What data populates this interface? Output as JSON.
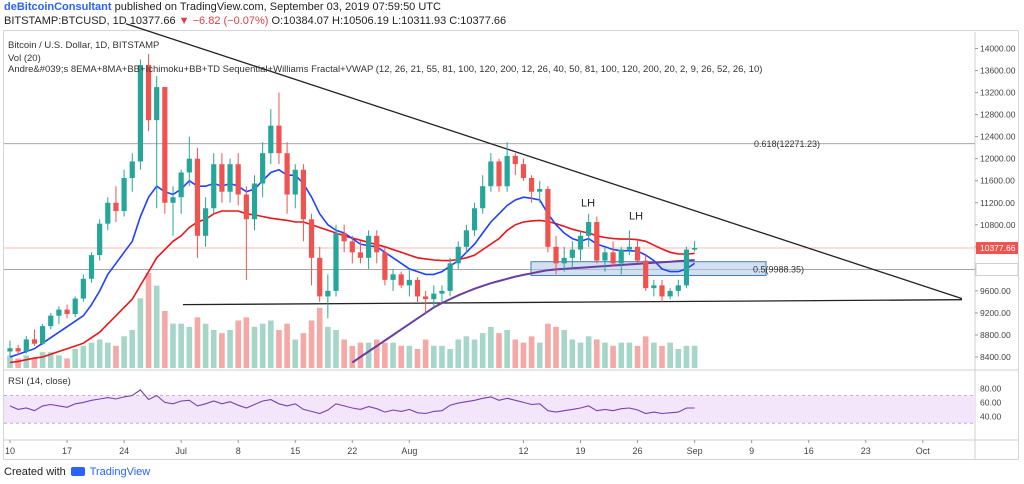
{
  "header": {
    "user": "deBitcoinConsultant",
    "published": "published on TradingView.com, September 03, 2019 07:59:50 UTC",
    "symbol_line": "BITSTAMP:BTCUSD, 1D 10377.66",
    "change": "▼ −6.82 (−0.07%)",
    "ohlc": "O:10384.07 H:10506.19 L:10311.93 C:10377.66"
  },
  "legend": {
    "title": "Bitcoin / U.S. Dollar, 1D, BITSTAMP",
    "vol": "Vol (20)",
    "indicators": "Andre&#039;s 8EMA+8MA+BB+Ichimoku+BB+TD Sequential+Williams Fractal+VWAP (12, 26, 21, 55, 81, 100, 120, 200, 12, 26, 40, 50, 81, 100, 120, 200, 20, 2, 9, 26, 52, 26, 10)",
    "rsi": "RSI (14, close)"
  },
  "footer": {
    "created": "Created with",
    "brand": "TradingView"
  },
  "colors": {
    "up": "#26a69a",
    "down": "#ef5350",
    "vol_up": "#a5d6c7",
    "vol_down": "#f4a9a6",
    "ema_blue": "#1e40ff",
    "ma_red": "#e8151b",
    "vwap": "#6a3ea1",
    "rsi_line": "#7b3fb0",
    "rsi_band": "#f3e6fb"
  },
  "chart_data": {
    "type": "candlestick",
    "title": "Bitcoin / U.S. Dollar, 1D, BITSTAMP",
    "ylim": [
      8200,
      14300
    ],
    "price_ticks": [
      14000,
      13600,
      13200,
      12800,
      12400,
      12000,
      11600,
      11200,
      10800,
      10400,
      10000,
      9600,
      9200,
      8800,
      8400
    ],
    "price_tick_labels": [
      "14000.00",
      "13600.00",
      "13200.00",
      "12800.00",
      "12400.00",
      "12000.00",
      "11600.00",
      "11200.00",
      "10800.00",
      "10400.00",
      "10000.00",
      "9600.00",
      "9200.00",
      "8800.00",
      "8400.00"
    ],
    "x_ticks": [
      "10",
      "17",
      "24",
      "Jul",
      "8",
      "15",
      "22",
      "Aug",
      "12",
      "19",
      "26",
      "Sep",
      "9",
      "16",
      "23",
      "Oct"
    ],
    "x_tick_days": [
      0,
      7,
      14,
      21,
      28,
      35,
      42,
      49,
      63,
      70,
      77,
      84,
      91,
      98,
      105,
      112
    ],
    "candles": [
      [
        8500,
        8700,
        8420,
        8560
      ],
      [
        8560,
        8620,
        8430,
        8500
      ],
      [
        8500,
        8780,
        8460,
        8720
      ],
      [
        8720,
        8900,
        8600,
        8640
      ],
      [
        8640,
        9000,
        8620,
        8960
      ],
      [
        8960,
        9200,
        8900,
        9150
      ],
      [
        9150,
        9320,
        9000,
        9260
      ],
      [
        9260,
        9350,
        9100,
        9180
      ],
      [
        9180,
        9500,
        9120,
        9460
      ],
      [
        9460,
        9900,
        9400,
        9820
      ],
      [
        9820,
        10300,
        9750,
        10250
      ],
      [
        10250,
        10900,
        10150,
        10820
      ],
      [
        10820,
        11300,
        10700,
        11200
      ],
      [
        11200,
        11500,
        10850,
        11050
      ],
      [
        11050,
        11800,
        10950,
        11650
      ],
      [
        11650,
        12100,
        11400,
        11950
      ],
      [
        11950,
        13800,
        11800,
        13700
      ],
      [
        13700,
        13900,
        12500,
        12700
      ],
      [
        12700,
        13500,
        11100,
        13300
      ],
      [
        13300,
        13300,
        11000,
        11200
      ],
      [
        11200,
        11500,
        10600,
        11300
      ],
      [
        11300,
        11800,
        11000,
        11750
      ],
      [
        11750,
        12400,
        11500,
        12000
      ],
      [
        12000,
        12200,
        10200,
        10600
      ],
      [
        10600,
        11300,
        10400,
        11100
      ],
      [
        11100,
        12100,
        11000,
        11900
      ],
      [
        11900,
        12100,
        11200,
        11400
      ],
      [
        11400,
        12000,
        11200,
        11900
      ],
      [
        11900,
        12100,
        11150,
        11350
      ],
      [
        11350,
        11500,
        9800,
        10900
      ],
      [
        10900,
        11700,
        10700,
        11550
      ],
      [
        11550,
        12300,
        11300,
        12100
      ],
      [
        12100,
        12900,
        11900,
        12600
      ],
      [
        12600,
        13200,
        11900,
        12100
      ],
      [
        12100,
        12300,
        11000,
        11350
      ],
      [
        11350,
        11900,
        11100,
        11800
      ],
      [
        11800,
        11900,
        10500,
        10900
      ],
      [
        10900,
        11000,
        9700,
        10200
      ],
      [
        10200,
        10400,
        9400,
        9500
      ],
      [
        9500,
        9900,
        9100,
        9600
      ],
      [
        9600,
        10800,
        9500,
        10650
      ],
      [
        10650,
        10800,
        10300,
        10500
      ],
      [
        10500,
        10600,
        10100,
        10300
      ],
      [
        10300,
        10500,
        10100,
        10200
      ],
      [
        10200,
        10700,
        10000,
        10600
      ],
      [
        10600,
        10700,
        10100,
        10300
      ],
      [
        10300,
        10400,
        9700,
        9800
      ],
      [
        9800,
        10000,
        9600,
        9900
      ],
      [
        9900,
        9950,
        9650,
        9700
      ],
      [
        9700,
        10000,
        9500,
        9800
      ],
      [
        9800,
        9850,
        9400,
        9500
      ],
      [
        9500,
        9600,
        9200,
        9450
      ],
      [
        9450,
        9700,
        9300,
        9550
      ],
      [
        9550,
        9700,
        9400,
        9600
      ],
      [
        9600,
        10200,
        9500,
        10100
      ],
      [
        10100,
        10500,
        10000,
        10400
      ],
      [
        10400,
        10800,
        10300,
        10700
      ],
      [
        10700,
        11200,
        10600,
        11100
      ],
      [
        11100,
        11700,
        11000,
        11500
      ],
      [
        11500,
        12100,
        11400,
        11950
      ],
      [
        11950,
        12000,
        11400,
        11500
      ],
      [
        11500,
        12300,
        11400,
        12050
      ],
      [
        12050,
        12100,
        11700,
        11900
      ],
      [
        11900,
        12000,
        11600,
        11650
      ],
      [
        11650,
        11700,
        11200,
        11400
      ],
      [
        11400,
        11600,
        11200,
        11450
      ],
      [
        11450,
        11500,
        10300,
        10400
      ],
      [
        10400,
        10600,
        9900,
        10100
      ],
      [
        10100,
        10400,
        9950,
        10200
      ],
      [
        10200,
        10500,
        10000,
        10350
      ],
      [
        10350,
        10700,
        10150,
        10600
      ],
      [
        10600,
        11000,
        10400,
        10850
      ],
      [
        10850,
        10950,
        10100,
        10150
      ],
      [
        10150,
        10400,
        9950,
        10300
      ],
      [
        10300,
        10500,
        10050,
        10100
      ],
      [
        10100,
        10400,
        9900,
        10350
      ],
      [
        10350,
        10700,
        10250,
        10400
      ],
      [
        10400,
        10550,
        10100,
        10150
      ],
      [
        10150,
        10250,
        9600,
        9650
      ],
      [
        9650,
        9800,
        9500,
        9700
      ],
      [
        9700,
        9800,
        9400,
        9500
      ],
      [
        9500,
        9650,
        9450,
        9600
      ],
      [
        9600,
        9800,
        9500,
        9700
      ],
      [
        9700,
        10400,
        9650,
        10350
      ],
      [
        10350,
        10506,
        10312,
        10378
      ]
    ],
    "volume": [
      4,
      3,
      4,
      3,
      5,
      5,
      4,
      3,
      6,
      7,
      8,
      9,
      8,
      7,
      10,
      12,
      22,
      30,
      26,
      18,
      14,
      14,
      13,
      16,
      14,
      12,
      11,
      12,
      15,
      16,
      13,
      14,
      15,
      12,
      14,
      9,
      11,
      15,
      19,
      13,
      12,
      9,
      7,
      8,
      8,
      9,
      8,
      8,
      7,
      7,
      6,
      9,
      7,
      7,
      6,
      9,
      10,
      9,
      11,
      13,
      11,
      12,
      9,
      8,
      10,
      8,
      14,
      13,
      12,
      9,
      8,
      10,
      9,
      8,
      7,
      8,
      8,
      7,
      10,
      8,
      7,
      8,
      6,
      7,
      7
    ],
    "ema_blue": [
      8400,
      8450,
      8500,
      8550,
      8650,
      8750,
      8850,
      8950,
      9050,
      9150,
      9350,
      9600,
      9900,
      10100,
      10300,
      10500,
      10950,
      11300,
      11500,
      11400,
      11350,
      11450,
      11600,
      11500,
      11500,
      11550,
      11500,
      11550,
      11500,
      11400,
      11450,
      11600,
      11750,
      11800,
      11700,
      11700,
      11550,
      11300,
      11000,
      10800,
      10700,
      10650,
      10550,
      10450,
      10420,
      10400,
      10300,
      10200,
      10100,
      10000,
      9950,
      9900,
      9900,
      9950,
      10050,
      10150,
      10300,
      10450,
      10650,
      10850,
      11000,
      11150,
      11250,
      11300,
      11280,
      11250,
      11000,
      10800,
      10650,
      10550,
      10500,
      10550,
      10450,
      10400,
      10350,
      10330,
      10330,
      10320,
      10250,
      10150,
      10000,
      9950,
      9950,
      10000,
      10100
    ],
    "ma_red": [
      8300,
      8320,
      8350,
      8380,
      8400,
      8450,
      8500,
      8550,
      8600,
      8650,
      8750,
      8850,
      9000,
      9150,
      9300,
      9450,
      9700,
      9950,
      10200,
      10350,
      10500,
      10600,
      10750,
      10850,
      10900,
      11000,
      11050,
      11050,
      11050,
      11000,
      10980,
      10950,
      10920,
      10900,
      10880,
      10850,
      10850,
      10800,
      10750,
      10700,
      10650,
      10600,
      10560,
      10520,
      10480,
      10440,
      10400,
      10350,
      10300,
      10250,
      10200,
      10180,
      10160,
      10150,
      10150,
      10170,
      10200,
      10250,
      10350,
      10450,
      10550,
      10700,
      10800,
      10850,
      10870,
      10880,
      10860,
      10820,
      10770,
      10720,
      10680,
      10650,
      10600,
      10570,
      10550,
      10540,
      10540,
      10530,
      10500,
      10430,
      10360,
      10300,
      10270,
      10270,
      10280
    ],
    "vwap_start_day": 42,
    "vwap": [
      8300,
      8400,
      8500,
      8600,
      8700,
      8800,
      8900,
      9000,
      9100,
      9200,
      9300,
      9380,
      9450,
      9520,
      9580,
      9640,
      9690,
      9740,
      9780,
      9820,
      9860,
      9890,
      9920,
      9950,
      9975,
      9990,
      10000,
      10010,
      10020,
      10030,
      10040,
      10050,
      10060,
      10070,
      10080,
      10090,
      10100,
      10110,
      10120,
      10130,
      10140,
      10150,
      10160
    ],
    "rsi_ticks": [
      80,
      60,
      40
    ],
    "rsi": [
      55,
      50,
      52,
      48,
      55,
      57,
      55,
      53,
      58,
      60,
      63,
      65,
      67,
      65,
      68,
      70,
      78,
      64,
      70,
      60,
      58,
      62,
      63,
      55,
      58,
      62,
      58,
      61,
      56,
      52,
      57,
      62,
      64,
      58,
      55,
      58,
      50,
      47,
      44,
      49,
      58,
      55,
      52,
      50,
      54,
      51,
      46,
      49,
      47,
      50,
      45,
      44,
      47,
      48,
      56,
      59,
      61,
      63,
      66,
      68,
      63,
      66,
      63,
      60,
      57,
      58,
      48,
      46,
      48,
      50,
      52,
      55,
      48,
      50,
      48,
      51,
      52,
      49,
      44,
      46,
      44,
      45,
      46,
      52,
      52
    ]
  },
  "annotations": {
    "fib_618": "0.618(12271.23)",
    "fib_05": "0.5(9988.35)",
    "lh1": "LH",
    "lh2": "LH",
    "last_price": "10377.66"
  }
}
